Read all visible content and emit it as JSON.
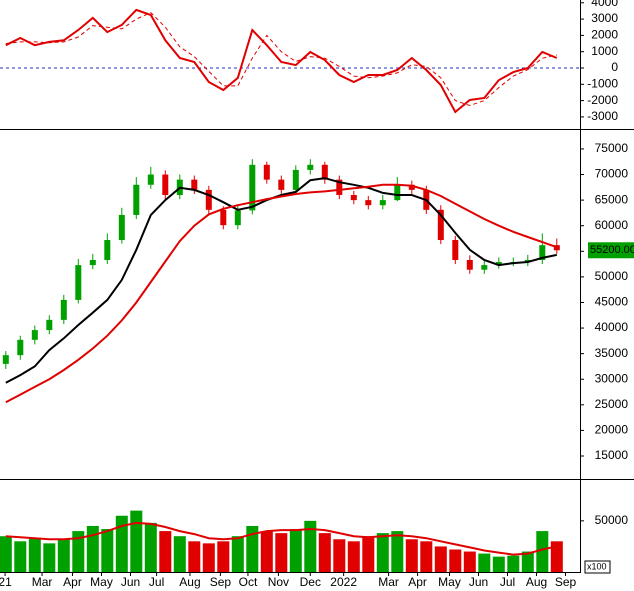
{
  "chart_data": [
    {
      "type": "line",
      "ylim": [
        -3680,
        4170
      ],
      "yticks": [
        4000,
        3000,
        2000,
        1000,
        0,
        -1000,
        -2000,
        -3000
      ],
      "reference_line": {
        "value": 0,
        "color": "#2030c0"
      },
      "series": [
        {
          "color": "#e00000",
          "style": "solid",
          "values": [
            1400,
            1840,
            1400,
            1600,
            1700,
            2330,
            3070,
            2200,
            2640,
            3560,
            3250,
            1700,
            610,
            370,
            -860,
            -1350,
            -610,
            2330,
            1400,
            370,
            180,
            980,
            490,
            -430,
            -860,
            -430,
            -430,
            -120,
            610,
            -120,
            -1040,
            -2700,
            -1960,
            -1840,
            -740,
            -250,
            0,
            980,
            610
          ]
        },
        {
          "color": "#e00000",
          "style": "dashed",
          "values": [
            1500,
            1600,
            1600,
            1550,
            1600,
            1900,
            2600,
            2500,
            2400,
            3000,
            3400,
            2500,
            1300,
            700,
            -200,
            -1100,
            -1100,
            600,
            2000,
            1000,
            400,
            700,
            600,
            100,
            -500,
            -600,
            -500,
            -300,
            200,
            100,
            -600,
            -2000,
            -2300,
            -2000,
            -1200,
            -500,
            -100,
            600,
            800
          ]
        }
      ]
    },
    {
      "type": "candlestick",
      "ylim": [
        10700,
        78700
      ],
      "yticks": [
        15000,
        20000,
        25000,
        30000,
        35000,
        40000,
        45000,
        50000,
        55000,
        60000,
        65000,
        70000,
        75000
      ],
      "up_color": "#00a000",
      "down_color": "#e00000",
      "open": [
        33000,
        34700,
        37700,
        39600,
        41600,
        45500,
        52300,
        53300,
        57200,
        62100,
        68000,
        70000,
        66000,
        69000,
        67000,
        63100,
        60100,
        63000,
        71900,
        69000,
        67000,
        70900,
        71900,
        69000,
        66000,
        65000,
        64000,
        65000,
        68000,
        67000,
        63100,
        57200,
        53300,
        51400,
        52300,
        52900,
        52900,
        53300,
        56200
      ],
      "high": [
        35500,
        38500,
        40500,
        42500,
        46500,
        53500,
        54500,
        58500,
        63500,
        69500,
        71500,
        70800,
        70000,
        69800,
        67800,
        63800,
        64000,
        73000,
        72500,
        69800,
        71800,
        73000,
        72500,
        69800,
        66800,
        65800,
        66000,
        69500,
        68800,
        67800,
        64000,
        58000,
        54200,
        53200,
        53800,
        53800,
        54300,
        58500,
        57500
      ],
      "low": [
        32000,
        33800,
        36800,
        38800,
        40800,
        44800,
        51500,
        52500,
        56500,
        61300,
        67200,
        65200,
        65200,
        66200,
        62300,
        59300,
        59300,
        62200,
        68200,
        66200,
        66200,
        70000,
        68200,
        65200,
        64200,
        63200,
        63200,
        64800,
        66200,
        62300,
        56400,
        52500,
        50600,
        50600,
        51600,
        52100,
        52100,
        52500,
        54500
      ],
      "close": [
        34700,
        37700,
        39600,
        41600,
        45500,
        52300,
        53300,
        57200,
        62100,
        68000,
        70000,
        66000,
        69000,
        67000,
        63100,
        60100,
        63000,
        71900,
        69000,
        67000,
        70900,
        71900,
        69000,
        66000,
        65000,
        64000,
        65000,
        68000,
        67000,
        63100,
        57200,
        53300,
        51400,
        52300,
        52900,
        52900,
        53300,
        56200,
        55200
      ],
      "series": [
        {
          "color": "#000000",
          "values": [
            29300,
            30800,
            32500,
            35700,
            38000,
            40600,
            43000,
            45500,
            49400,
            55300,
            62100,
            65000,
            67400,
            67000,
            66000,
            64600,
            63100,
            63700,
            65000,
            66000,
            66600,
            68900,
            69300,
            68500,
            68000,
            67400,
            66400,
            66000,
            66000,
            65000,
            62100,
            58600,
            55300,
            53300,
            52300,
            52700,
            52900,
            53700,
            54300
          ]
        },
        {
          "color": "#e00000",
          "values": [
            25500,
            27000,
            28500,
            30000,
            31800,
            33800,
            36000,
            38500,
            41500,
            45000,
            49000,
            53000,
            57000,
            60000,
            62200,
            63300,
            64000,
            64600,
            65200,
            65700,
            66200,
            66500,
            66700,
            67000,
            67300,
            67600,
            68000,
            68000,
            67800,
            67000,
            65800,
            64300,
            62800,
            61300,
            60000,
            58800,
            57800,
            56800,
            55800
          ]
        }
      ],
      "last_price": {
        "value": 55200,
        "label": "55200.00",
        "color": "#00a000"
      }
    },
    {
      "type": "volume",
      "ylim": [
        0,
        87000
      ],
      "yticks": [
        50000
      ],
      "unit_label": "x100",
      "xlim": [
        -0.4,
        39.6
      ],
      "xticks": [
        {
          "value": -0.05,
          "label": "21"
        },
        {
          "value": 2.5,
          "label": "Mar"
        },
        {
          "value": 4.6,
          "label": "Apr"
        },
        {
          "value": 6.6,
          "label": "May"
        },
        {
          "value": 8.6,
          "label": "Jun"
        },
        {
          "value": 10.4,
          "label": "Jul"
        },
        {
          "value": 12.7,
          "label": "Aug"
        },
        {
          "value": 14.8,
          "label": "Sep"
        },
        {
          "value": 16.7,
          "label": "Oct"
        },
        {
          "value": 18.8,
          "label": "Nov"
        },
        {
          "value": 21,
          "label": "Dec"
        },
        {
          "value": 23.3,
          "label": "2022"
        },
        {
          "value": 26.4,
          "label": "Mar"
        },
        {
          "value": 28.4,
          "label": "Apr"
        },
        {
          "value": 30.6,
          "label": "May"
        },
        {
          "value": 32.6,
          "label": "Jun"
        },
        {
          "value": 34.6,
          "label": "Jul"
        },
        {
          "value": 36.6,
          "label": "Aug"
        },
        {
          "value": 38.6,
          "label": "Sep"
        }
      ],
      "values": [
        35000,
        30000,
        33000,
        28000,
        32000,
        40000,
        45000,
        42000,
        55000,
        60000,
        48000,
        40000,
        35000,
        30000,
        28000,
        30000,
        35000,
        45000,
        40000,
        38000,
        42000,
        50000,
        38000,
        32000,
        30000,
        35000,
        38000,
        40000,
        32000,
        30000,
        25000,
        22000,
        20000,
        18000,
        15000,
        16000,
        20000,
        40000,
        30000
      ],
      "series": [
        {
          "color": "#e00000",
          "values": [
            35000,
            34000,
            33000,
            32000,
            32000,
            33000,
            36000,
            40000,
            45000,
            48000,
            47000,
            44000,
            40000,
            37000,
            33000,
            32000,
            33000,
            37000,
            40000,
            41000,
            41000,
            42000,
            41000,
            38000,
            35000,
            34000,
            35000,
            36000,
            35000,
            33000,
            30000,
            27000,
            24000,
            21000,
            19000,
            17000,
            18000,
            22000,
            25000
          ]
        }
      ]
    }
  ]
}
